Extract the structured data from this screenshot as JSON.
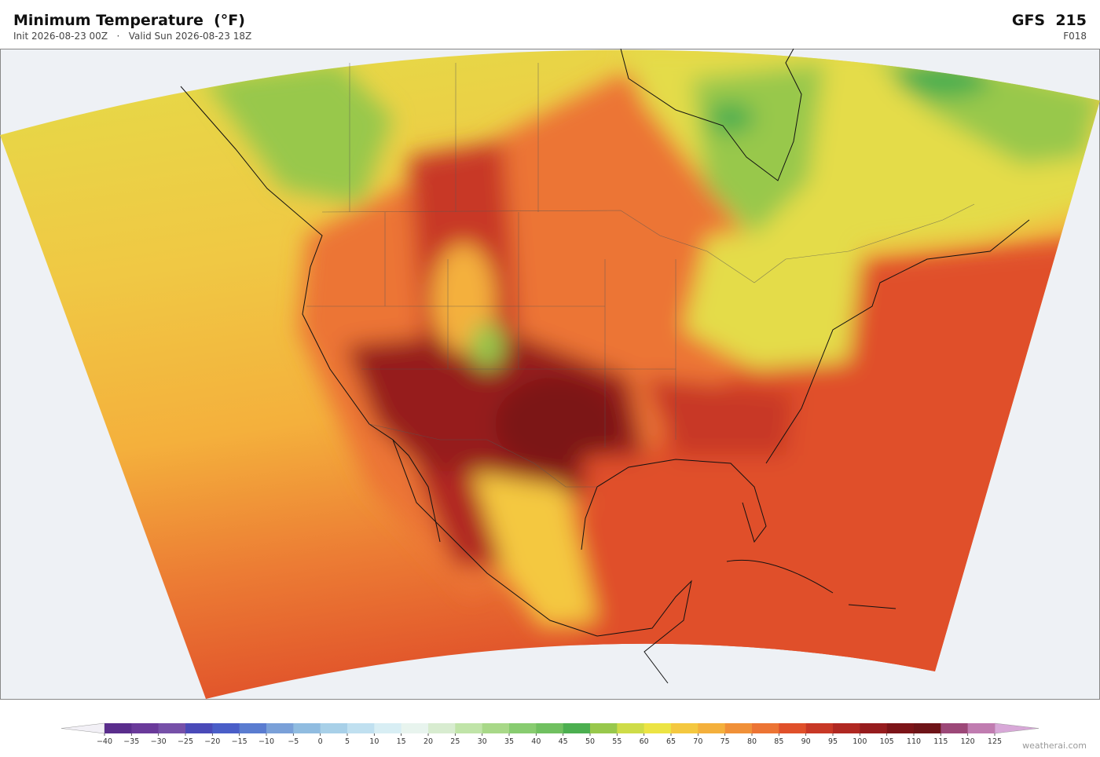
{
  "header": {
    "title": "Minimum Temperature  (°F)",
    "init": "Init 2026-08-23 00Z",
    "separator": "·",
    "valid": "Valid Sun 2026-08-23 18Z",
    "model": "GFS  215",
    "forecast_hour": "F018"
  },
  "colorbar": {
    "ticks": [
      {
        "value": -40,
        "label": "−40"
      },
      {
        "value": -35,
        "label": "−35"
      },
      {
        "value": -30,
        "label": "−30"
      },
      {
        "value": -25,
        "label": "−25"
      },
      {
        "value": -20,
        "label": "−20"
      },
      {
        "value": -15,
        "label": "−15"
      },
      {
        "value": -10,
        "label": "−10"
      },
      {
        "value": -5,
        "label": "−5"
      },
      0,
      5,
      10,
      15,
      20,
      25,
      30,
      35,
      40,
      45,
      50,
      55,
      60,
      65,
      70,
      75,
      80,
      85,
      90,
      95,
      100,
      105,
      110,
      115,
      120,
      125
    ],
    "colors": [
      "#5a2d8c",
      "#6a3a9a",
      "#7650a8",
      "#4a4ab8",
      "#4a5ec8",
      "#5a7cd0",
      "#7aa0d8",
      "#90bce0",
      "#a8d0e8",
      "#c0e0f0",
      "#d8eef4",
      "#e8f4ee",
      "#d8ecd0",
      "#c0e4a8",
      "#a8d888",
      "#88cc70",
      "#70c060",
      "#4caf50",
      "#98c84c",
      "#cedc48",
      "#ece444",
      "#f4c840",
      "#f4b03c",
      "#f09038",
      "#ec7434",
      "#e0502a",
      "#c83826",
      "#b02822",
      "#961c1e",
      "#7c1418",
      "#6e1418",
      "#9c4878",
      "#c07cb0"
    ],
    "under_color": "#f2f0f6",
    "over_color": "#d8a8d8"
  },
  "credit": "weatherai.com"
}
